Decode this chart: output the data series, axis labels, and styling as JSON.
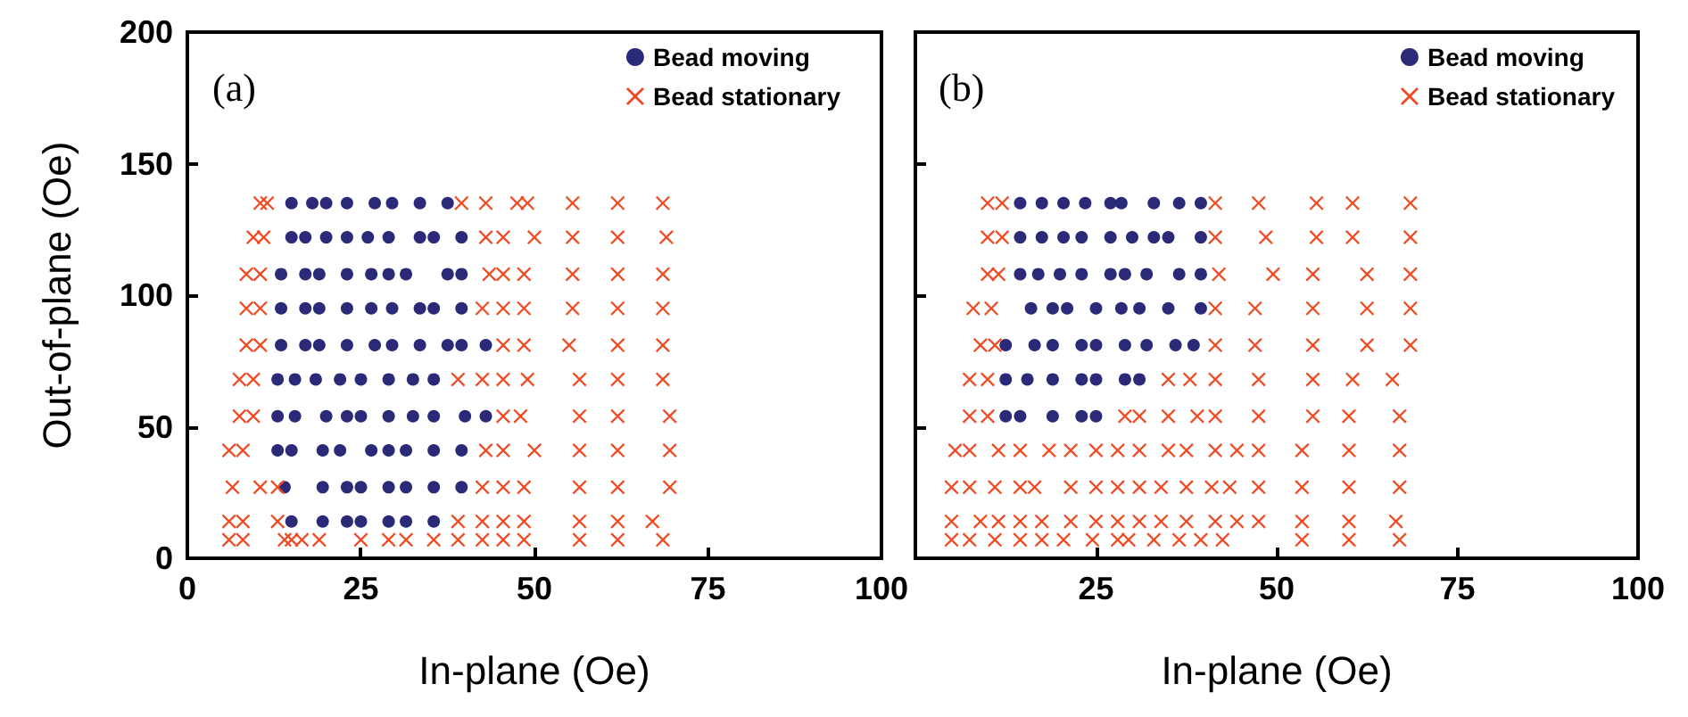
{
  "chart_data": [
    {
      "type": "scatter",
      "xlabel": "In-plane (Oe)",
      "ylabel": "Out-of-plane (Oe)",
      "annotations": [
        "(a)"
      ],
      "xlim": [
        0,
        100
      ],
      "ylim": [
        0,
        200
      ],
      "xticks": [
        0,
        25,
        50,
        75,
        100
      ],
      "yticks": [
        0,
        50,
        100,
        150,
        200
      ],
      "legend": "top right",
      "grid": false,
      "series": [
        {
          "name": "Bead moving",
          "color": "#2b2a78",
          "marker": "circle",
          "x": [
            15,
            18,
            20,
            23,
            27,
            29.5,
            33.5,
            37.5,
            15,
            17,
            20,
            23,
            26,
            29,
            33.5,
            35.5,
            39.5,
            13.5,
            17,
            19,
            23,
            26.5,
            29,
            31.5,
            37.5,
            39.5,
            13.5,
            17,
            19,
            23,
            26.5,
            29.5,
            33.5,
            35.5,
            39.5,
            13.5,
            17,
            19,
            23,
            27,
            29.5,
            33.5,
            37.5,
            39.5,
            43,
            13,
            15.5,
            18.5,
            22,
            25,
            29,
            32.5,
            35.5,
            13,
            15.5,
            20,
            23,
            25,
            29,
            32.5,
            35.5,
            40,
            43,
            13,
            15,
            19.5,
            22,
            26.5,
            29,
            31.5,
            35.5,
            39.5,
            14,
            19.5,
            23,
            25,
            29,
            31.5,
            35.5,
            39.5,
            15,
            19.5,
            23,
            25,
            29,
            31.5,
            35.5
          ],
          "values": [
            135,
            135,
            135,
            135,
            135,
            135,
            135,
            135,
            122,
            122,
            122,
            122,
            122,
            122,
            122,
            122,
            122,
            108,
            108,
            108,
            108,
            108,
            108,
            108,
            108,
            108,
            95,
            95,
            95,
            95,
            95,
            95,
            95,
            95,
            95,
            81,
            81,
            81,
            81,
            81,
            81,
            81,
            81,
            81,
            81,
            68,
            68,
            68,
            68,
            68,
            68,
            68,
            68,
            54,
            54,
            54,
            54,
            54,
            54,
            54,
            54,
            54,
            54,
            41,
            41,
            41,
            41,
            41,
            41,
            41,
            41,
            41,
            27,
            27,
            27,
            27,
            27,
            27,
            27,
            27,
            14,
            14,
            14,
            14,
            14,
            14,
            14
          ]
        },
        {
          "name": "Bead stationary",
          "color": "#f04a23",
          "marker": "cross",
          "x": [
            10.5,
            11.5,
            39.5,
            43,
            47.5,
            49,
            55.5,
            62,
            68.5,
            9.5,
            11,
            43,
            45.5,
            50,
            55.5,
            62,
            69,
            8.5,
            10.5,
            43.5,
            45.5,
            48.5,
            55.5,
            62,
            68.5,
            8.5,
            10.5,
            42.5,
            45.5,
            48.5,
            55.5,
            62,
            68.5,
            8.5,
            10.5,
            45.5,
            48.5,
            55,
            62,
            68.5,
            7.5,
            9.5,
            39,
            42.5,
            45.5,
            49,
            56.5,
            62,
            68.5,
            7.5,
            9.5,
            45.5,
            48,
            56.5,
            62,
            69.5,
            6,
            8,
            43,
            45.5,
            50,
            56.5,
            62,
            69.5,
            6.5,
            10.5,
            13,
            42.5,
            45.5,
            48.5,
            56.5,
            62,
            69.5,
            6,
            8,
            13,
            39,
            42.5,
            45.5,
            48.5,
            56.5,
            62,
            67,
            6,
            8,
            14,
            15,
            16.5,
            19,
            25,
            29,
            31.5,
            35.5,
            39,
            42.5,
            45.5,
            48.5,
            56.5,
            62,
            68.5
          ],
          "values": [
            135,
            135,
            135,
            135,
            135,
            135,
            135,
            135,
            135,
            122,
            122,
            122,
            122,
            122,
            122,
            122,
            122,
            108,
            108,
            108,
            108,
            108,
            108,
            108,
            108,
            95,
            95,
            95,
            95,
            95,
            95,
            95,
            95,
            81,
            81,
            81,
            81,
            81,
            81,
            81,
            68,
            68,
            68,
            68,
            68,
            68,
            68,
            68,
            68,
            54,
            54,
            54,
            54,
            54,
            54,
            54,
            41,
            41,
            41,
            41,
            41,
            41,
            41,
            41,
            27,
            27,
            27,
            27,
            27,
            27,
            27,
            27,
            27,
            14,
            14,
            14,
            14,
            14,
            14,
            14,
            14,
            14,
            14,
            7,
            7,
            7,
            7,
            7,
            7,
            7,
            7,
            7,
            7,
            7,
            7,
            7,
            7,
            7,
            7,
            7
          ]
        }
      ]
    },
    {
      "type": "scatter",
      "xlabel": "In-plane (Oe)",
      "annotations": [
        "(b)"
      ],
      "xlim": [
        0,
        100
      ],
      "ylim": [
        0,
        200
      ],
      "xticks": [
        {
          "value": 0,
          "label": null
        },
        25,
        50,
        75,
        100
      ],
      "yticks": [
        0,
        50,
        100,
        150,
        200
      ],
      "tick_labels": "x",
      "legend": "top right",
      "grid": false,
      "series": [
        {
          "name": "Bead moving",
          "color": "#2b2a78",
          "marker": "circle",
          "x": [
            14.5,
            17.5,
            20.5,
            23.5,
            27,
            28.5,
            33,
            36.5,
            39.5,
            14.5,
            17.5,
            20.5,
            23,
            27,
            30,
            33,
            35,
            39.5,
            14.5,
            17,
            20,
            23,
            27,
            29,
            32,
            36.5,
            39.5,
            16,
            19,
            21,
            25,
            28.5,
            31,
            35,
            39.5,
            12.5,
            16.5,
            19,
            23,
            25,
            29,
            32,
            36,
            38.5,
            12.5,
            15.5,
            19,
            23,
            25,
            29,
            31,
            12.5,
            14.5,
            19,
            23,
            25
          ],
          "values": [
            135,
            135,
            135,
            135,
            135,
            135,
            135,
            135,
            135,
            122,
            122,
            122,
            122,
            122,
            122,
            122,
            122,
            122,
            108,
            108,
            108,
            108,
            108,
            108,
            108,
            108,
            108,
            95,
            95,
            95,
            95,
            95,
            95,
            95,
            95,
            81,
            81,
            81,
            81,
            81,
            81,
            81,
            81,
            81,
            68,
            68,
            68,
            68,
            68,
            68,
            68,
            54,
            54,
            54,
            54,
            54
          ]
        },
        {
          "name": "Bead stationary",
          "color": "#f04a23",
          "marker": "cross",
          "x": [
            10,
            12,
            41.5,
            47.5,
            55.5,
            60.5,
            68.5,
            10,
            12,
            41.5,
            48.5,
            55.5,
            60.5,
            68.5,
            10,
            11.5,
            42,
            49.5,
            55,
            62.5,
            68.5,
            8,
            10.5,
            41.5,
            47,
            55,
            62.5,
            68.5,
            9,
            11,
            41.5,
            47,
            55,
            62.5,
            68.5,
            7.5,
            10,
            35,
            38,
            41.5,
            47.5,
            55,
            60.5,
            66,
            7.5,
            10,
            29,
            31,
            35,
            39,
            41.5,
            47.5,
            55,
            60,
            67,
            5.5,
            7.5,
            11.5,
            14.5,
            18.5,
            21.5,
            25,
            28,
            31,
            35,
            37.5,
            41.5,
            44.5,
            47.5,
            53.5,
            60,
            67,
            5,
            7.5,
            11,
            14.5,
            16.5,
            21.5,
            25,
            28,
            31,
            34,
            37.5,
            41,
            43.5,
            47.5,
            53.5,
            60,
            67,
            5,
            9,
            11.5,
            14.5,
            17.5,
            21.5,
            25,
            28,
            31,
            34,
            37.5,
            41.5,
            44.5,
            47.5,
            53.5,
            60,
            66.5,
            5,
            7.5,
            11,
            14.5,
            17.5,
            20.5,
            24.5,
            28,
            29.5,
            33,
            36.5,
            39.5,
            42.5,
            53.5,
            60,
            67
          ],
          "values": [
            135,
            135,
            135,
            135,
            135,
            135,
            135,
            122,
            122,
            122,
            122,
            122,
            122,
            122,
            108,
            108,
            108,
            108,
            108,
            108,
            108,
            95,
            95,
            95,
            95,
            95,
            95,
            95,
            81,
            81,
            81,
            81,
            81,
            81,
            81,
            68,
            68,
            68,
            68,
            68,
            68,
            68,
            68,
            68,
            54,
            54,
            54,
            54,
            54,
            54,
            54,
            54,
            54,
            54,
            54,
            41,
            41,
            41,
            41,
            41,
            41,
            41,
            41,
            41,
            41,
            41,
            41,
            41,
            41,
            41,
            41,
            41,
            27,
            27,
            27,
            27,
            27,
            27,
            27,
            27,
            27,
            27,
            27,
            27,
            27,
            27,
            27,
            27,
            27,
            14,
            14,
            14,
            14,
            14,
            14,
            14,
            14,
            14,
            14,
            14,
            14,
            14,
            14,
            14,
            14,
            14,
            7,
            7,
            7,
            7,
            7,
            7,
            7,
            7,
            7,
            7,
            7,
            7,
            7,
            7,
            7,
            7
          ]
        }
      ]
    }
  ]
}
